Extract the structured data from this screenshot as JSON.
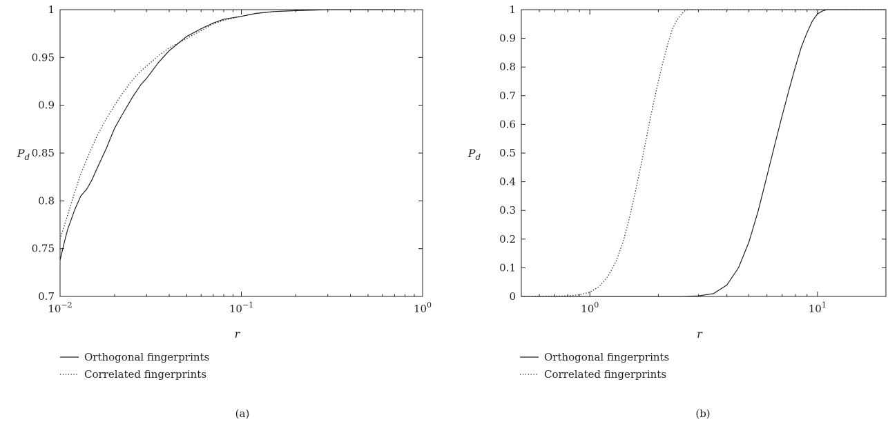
{
  "chart_data": [
    {
      "type": "line",
      "panel_label": "(a)",
      "xlabel": "r",
      "ylabel": "P",
      "ylabel_sub": "d",
      "xscale": "log",
      "xlim": [
        0.01,
        1
      ],
      "ylim": [
        0.7,
        1
      ],
      "x_ticks": [
        0.01,
        0.1,
        1
      ],
      "x_tick_labels": [
        {
          "base": "10",
          "exp": "−2"
        },
        {
          "base": "10",
          "exp": "−1"
        },
        {
          "base": "10",
          "exp": "0"
        }
      ],
      "y_ticks": [
        0.7,
        0.75,
        0.8,
        0.85,
        0.9,
        0.95,
        1
      ],
      "y_tick_labels": [
        "0.7",
        "0.75",
        "0.8",
        "0.85",
        "0.9",
        "0.95",
        "1"
      ],
      "grid": false,
      "legend_position": "below",
      "series": [
        {
          "name": "Orthogonal fingerprints",
          "style": "solid",
          "x": [
            0.01,
            0.0105,
            0.011,
            0.0115,
            0.012,
            0.013,
            0.014,
            0.015,
            0.016,
            0.018,
            0.02,
            0.022,
            0.025,
            0.028,
            0.03,
            0.035,
            0.04,
            0.045,
            0.05,
            0.06,
            0.07,
            0.08,
            0.1,
            0.12,
            0.15,
            0.2,
            0.3,
            0.5,
            0.8
          ],
          "y": [
            0.738,
            0.755,
            0.77,
            0.78,
            0.79,
            0.805,
            0.812,
            0.822,
            0.834,
            0.855,
            0.876,
            0.89,
            0.908,
            0.922,
            0.928,
            0.945,
            0.957,
            0.965,
            0.972,
            0.98,
            0.986,
            0.99,
            0.993,
            0.996,
            0.998,
            0.999,
            1.0,
            1.0,
            1.0
          ]
        },
        {
          "name": "Correlated fingerprints",
          "style": "dotted",
          "x": [
            0.01,
            0.011,
            0.012,
            0.013,
            0.014,
            0.015,
            0.016,
            0.018,
            0.02,
            0.022,
            0.025,
            0.028,
            0.03,
            0.035,
            0.04,
            0.05,
            0.06,
            0.07,
            0.08,
            0.1,
            0.12,
            0.15,
            0.2,
            0.3,
            0.5,
            0.8
          ],
          "y": [
            0.76,
            0.785,
            0.808,
            0.828,
            0.843,
            0.856,
            0.868,
            0.886,
            0.9,
            0.912,
            0.926,
            0.936,
            0.941,
            0.952,
            0.96,
            0.97,
            0.978,
            0.985,
            0.989,
            0.993,
            0.996,
            0.998,
            0.999,
            1.0,
            1.0,
            1.0
          ]
        }
      ]
    },
    {
      "type": "line",
      "panel_label": "(b)",
      "xlabel": "r",
      "ylabel": "P",
      "ylabel_sub": "d",
      "xscale": "log",
      "xlim": [
        0.5,
        20
      ],
      "ylim": [
        0,
        1
      ],
      "x_ticks": [
        1,
        10
      ],
      "x_tick_labels": [
        {
          "base": "10",
          "exp": "0"
        },
        {
          "base": "10",
          "exp": "1"
        }
      ],
      "y_ticks": [
        0,
        0.1,
        0.2,
        0.3,
        0.4,
        0.5,
        0.6,
        0.7,
        0.8,
        0.9,
        1
      ],
      "y_tick_labels": [
        "0",
        "0.1",
        "0.2",
        "0.3",
        "0.4",
        "0.5",
        "0.6",
        "0.7",
        "0.8",
        "0.9",
        "1"
      ],
      "grid": false,
      "legend_position": "below",
      "series": [
        {
          "name": "Orthogonal fingerprints",
          "style": "solid",
          "x": [
            0.5,
            2.0,
            2.5,
            3.0,
            3.5,
            4.0,
            4.5,
            5.0,
            5.5,
            6.0,
            6.5,
            7.0,
            7.5,
            8.0,
            8.5,
            9.0,
            9.5,
            10.0,
            10.5,
            11.0,
            11.5,
            12.0,
            20.0
          ],
          "y": [
            0,
            0,
            0.0,
            0.002,
            0.01,
            0.04,
            0.1,
            0.19,
            0.3,
            0.42,
            0.53,
            0.63,
            0.72,
            0.8,
            0.87,
            0.92,
            0.96,
            0.985,
            0.995,
            1.0,
            1.0,
            1.0,
            1.0
          ]
        },
        {
          "name": "Correlated fingerprints",
          "style": "dotted",
          "x": [
            0.5,
            0.8,
            0.9,
            1.0,
            1.1,
            1.2,
            1.3,
            1.4,
            1.5,
            1.6,
            1.7,
            1.8,
            1.9,
            2.0,
            2.1,
            2.2,
            2.3,
            2.4,
            2.5,
            2.6,
            2.7,
            3.0,
            20.0
          ],
          "y": [
            0,
            0.002,
            0.006,
            0.015,
            0.035,
            0.07,
            0.12,
            0.19,
            0.28,
            0.38,
            0.48,
            0.58,
            0.67,
            0.75,
            0.82,
            0.88,
            0.93,
            0.96,
            0.98,
            0.995,
            1.0,
            1.0,
            1.0
          ]
        }
      ]
    }
  ]
}
